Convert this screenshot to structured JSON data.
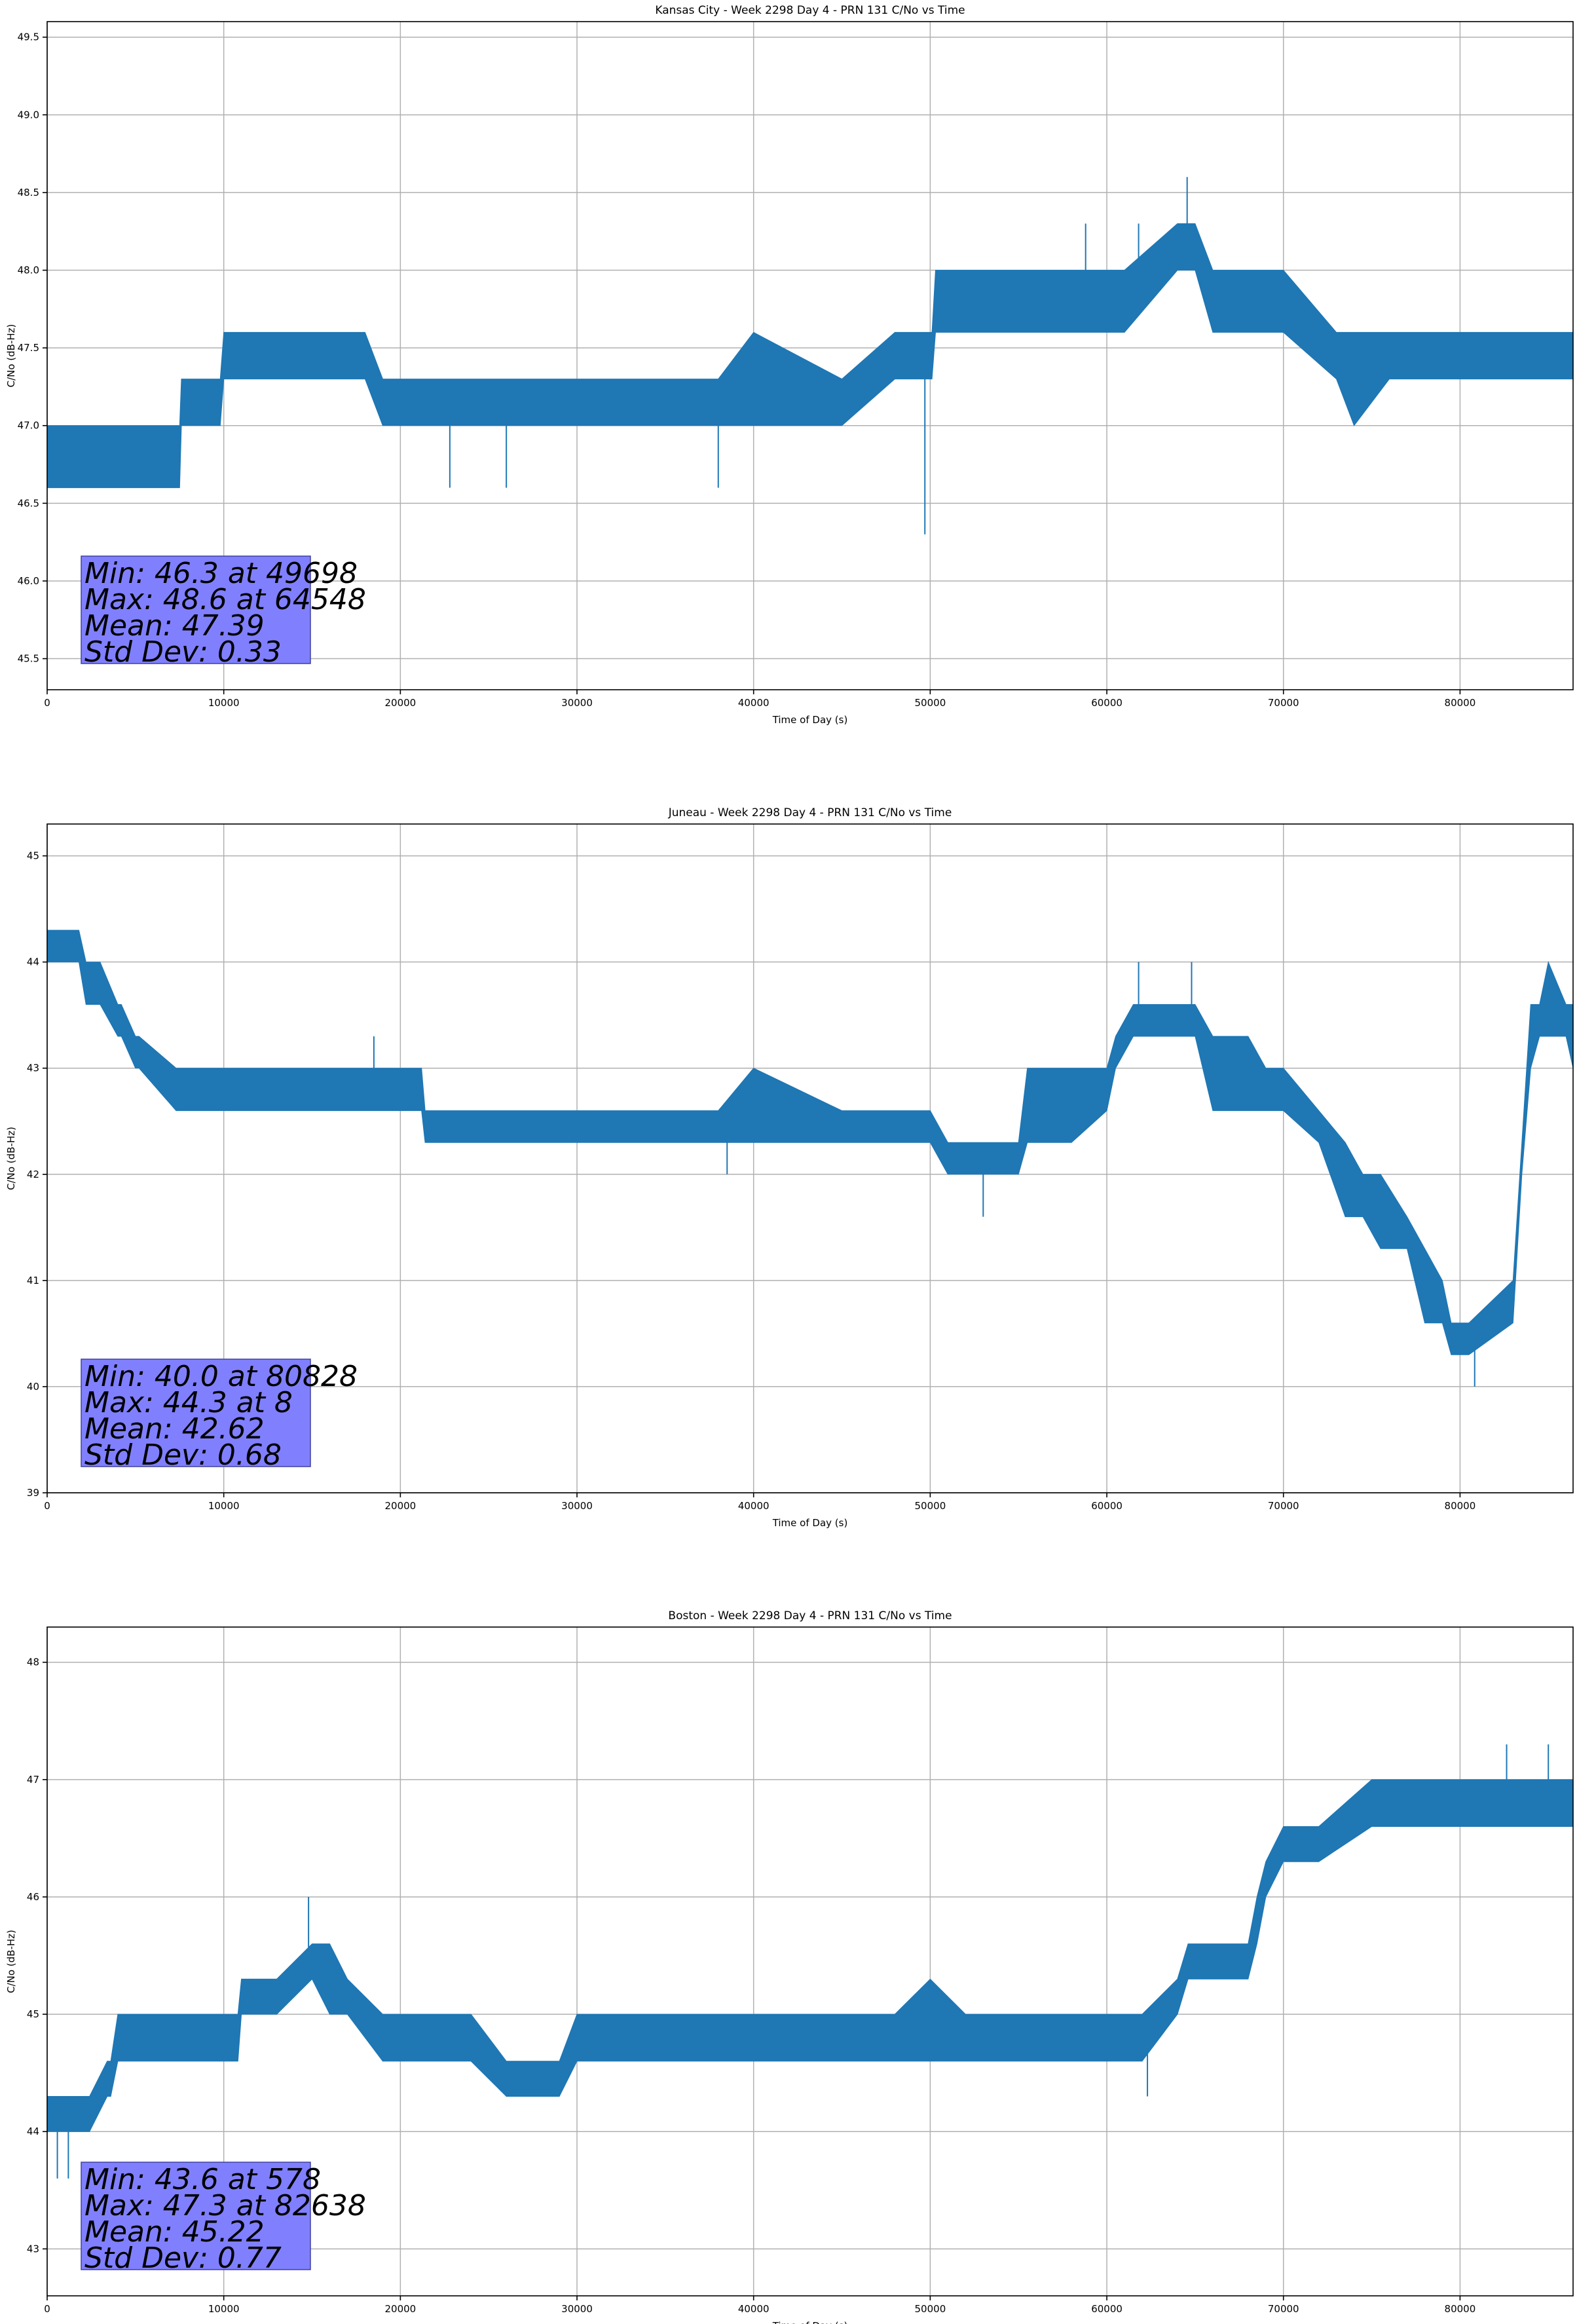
{
  "chart_data": [
    {
      "type": "line",
      "title": "Kansas City - Week 2298 Day 4 - PRN 131 C/No vs Time",
      "xlabel": "Time of Day (s)",
      "ylabel": "C/No (dB-Hz)",
      "xlim": [
        0,
        86400
      ],
      "ylim": [
        45.3,
        49.6
      ],
      "xticks": [
        0,
        10000,
        20000,
        30000,
        40000,
        50000,
        60000,
        70000,
        80000
      ],
      "yticks": [
        45.5,
        46.0,
        46.5,
        47.0,
        47.5,
        48.0,
        48.5,
        49.0,
        49.5
      ],
      "ytick_labels": [
        "45.5",
        "46.0",
        "46.5",
        "47.0",
        "47.5",
        "48.0",
        "48.5",
        "49.0",
        "49.5"
      ],
      "grid": true,
      "color": "#1f77b4",
      "band": {
        "x": [
          0,
          7500,
          7600,
          9800,
          10000,
          16000,
          18000,
          19000,
          21000,
          29000,
          30000,
          38000,
          40000,
          45000,
          48000,
          50100,
          50300,
          55000,
          60000,
          61000,
          64000,
          65000,
          66000,
          70000,
          73000,
          74000,
          76000,
          80000,
          86400
        ],
        "low": [
          46.6,
          46.6,
          47.0,
          47.0,
          47.3,
          47.3,
          47.3,
          47.0,
          47.0,
          47.0,
          47.0,
          47.0,
          47.0,
          47.0,
          47.3,
          47.3,
          47.6,
          47.6,
          47.6,
          47.6,
          48.0,
          48.0,
          47.6,
          47.6,
          47.3,
          47.0,
          47.3,
          47.3,
          47.3
        ],
        "high": [
          47.0,
          47.0,
          47.3,
          47.3,
          47.6,
          47.6,
          47.6,
          47.3,
          47.3,
          47.3,
          47.3,
          47.3,
          47.6,
          47.3,
          47.6,
          47.6,
          48.0,
          48.0,
          48.0,
          48.0,
          48.3,
          48.3,
          48.0,
          48.0,
          47.6,
          47.6,
          47.6,
          47.6,
          47.6
        ]
      },
      "spikes": [
        {
          "x": 49698,
          "y": 46.3
        },
        {
          "x": 64548,
          "y": 48.6
        },
        {
          "x": 22800,
          "y": 46.6
        },
        {
          "x": 26000,
          "y": 46.6
        },
        {
          "x": 38000,
          "y": 46.6
        },
        {
          "x": 58800,
          "y": 48.3
        },
        {
          "x": 61800,
          "y": 48.3
        }
      ],
      "stats": [
        "Min: 46.3 at 49698",
        "Max: 48.6 at 64548",
        "Mean: 47.39",
        "Std Dev: 0.33"
      ]
    },
    {
      "type": "line",
      "title": "Juneau - Week 2298 Day 4 - PRN 131 C/No vs Time",
      "xlabel": "Time of Day (s)",
      "ylabel": "C/No (dB-Hz)",
      "xlim": [
        0,
        86400
      ],
      "ylim": [
        39,
        45.3
      ],
      "xticks": [
        0,
        10000,
        20000,
        30000,
        40000,
        50000,
        60000,
        70000,
        80000
      ],
      "yticks": [
        39,
        40,
        41,
        42,
        43,
        44,
        45
      ],
      "ytick_labels": [
        "39",
        "40",
        "41",
        "42",
        "43",
        "44",
        "45"
      ],
      "grid": true,
      "color": "#1f77b4",
      "band": {
        "x": [
          0,
          1800,
          2200,
          2800,
          3000,
          4000,
          4200,
          5000,
          5200,
          7300,
          7500,
          9000,
          12000,
          19000,
          21200,
          21400,
          30000,
          38000,
          40000,
          45000,
          50000,
          51000,
          52000,
          55000,
          55500,
          58000,
          60000,
          60500,
          61500,
          62000,
          65000,
          66000,
          68000,
          69000,
          70000,
          72000,
          73500,
          74500,
          75500,
          77000,
          78000,
          79000,
          79500,
          80500,
          83000,
          83500,
          84000,
          84500,
          85000,
          86000,
          86400
        ],
        "low": [
          44.0,
          44.0,
          43.6,
          43.6,
          43.6,
          43.3,
          43.3,
          43.0,
          43.0,
          42.6,
          42.6,
          42.6,
          42.6,
          42.6,
          42.6,
          42.3,
          42.3,
          42.3,
          42.3,
          42.3,
          42.3,
          42.0,
          42.0,
          42.0,
          42.3,
          42.3,
          42.6,
          43.0,
          43.3,
          43.3,
          43.3,
          42.6,
          42.6,
          42.6,
          42.6,
          42.3,
          41.6,
          41.6,
          41.3,
          41.3,
          40.6,
          40.6,
          40.3,
          40.3,
          40.6,
          42.0,
          43.0,
          43.3,
          43.3,
          43.3,
          43.0
        ],
        "high": [
          44.3,
          44.3,
          44.0,
          44.0,
          44.0,
          43.6,
          43.6,
          43.3,
          43.3,
          43.0,
          43.0,
          43.0,
          43.0,
          43.0,
          43.0,
          42.6,
          42.6,
          42.6,
          43.0,
          42.6,
          42.6,
          42.3,
          42.3,
          42.3,
          43.0,
          43.0,
          43.0,
          43.3,
          43.6,
          43.6,
          43.6,
          43.3,
          43.3,
          43.0,
          43.0,
          42.6,
          42.3,
          42.0,
          42.0,
          41.6,
          41.3,
          41.0,
          40.6,
          40.6,
          41.0,
          42.3,
          43.6,
          43.6,
          44.0,
          43.6,
          43.6
        ]
      },
      "spikes": [
        {
          "x": 8,
          "y": 44.3
        },
        {
          "x": 80828,
          "y": 40.0
        },
        {
          "x": 53000,
          "y": 41.6
        },
        {
          "x": 61800,
          "y": 44.0
        },
        {
          "x": 64800,
          "y": 44.0
        },
        {
          "x": 18500,
          "y": 43.3
        },
        {
          "x": 38500,
          "y": 42.0
        }
      ],
      "stats": [
        "Min: 40.0 at 80828",
        "Max: 44.3 at 8",
        "Mean: 42.62",
        "Std Dev: 0.68"
      ]
    },
    {
      "type": "line",
      "title": "Boston - Week 2298 Day 4 - PRN 131 C/No vs Time",
      "xlabel": "Time of Day (s)",
      "ylabel": "C/No (dB-Hz)",
      "xlim": [
        0,
        86400
      ],
      "ylim": [
        42.6,
        48.3
      ],
      "xticks": [
        0,
        10000,
        20000,
        30000,
        40000,
        50000,
        60000,
        70000,
        80000
      ],
      "yticks": [
        43,
        44,
        45,
        46,
        47,
        48
      ],
      "ytick_labels": [
        "43",
        "44",
        "45",
        "46",
        "47",
        "48"
      ],
      "grid": true,
      "color": "#1f77b4",
      "band": {
        "x": [
          0,
          2200,
          2400,
          3400,
          3600,
          4000,
          10800,
          11000,
          13000,
          15000,
          16000,
          17000,
          19000,
          24000,
          26000,
          29000,
          30000,
          35000,
          48000,
          50000,
          52000,
          56000,
          60000,
          62000,
          64000,
          64600,
          68000,
          68500,
          69000,
          70000,
          70500,
          72000,
          75000,
          76000,
          80000,
          86400
        ],
        "low": [
          44.0,
          44.0,
          44.0,
          44.3,
          44.3,
          44.6,
          44.6,
          45.0,
          45.0,
          45.3,
          45.0,
          45.0,
          44.6,
          44.6,
          44.3,
          44.3,
          44.6,
          44.6,
          44.6,
          44.6,
          44.6,
          44.6,
          44.6,
          44.6,
          45.0,
          45.3,
          45.3,
          45.6,
          46.0,
          46.3,
          46.3,
          46.3,
          46.6,
          46.6,
          46.6,
          46.6
        ],
        "high": [
          44.3,
          44.3,
          44.3,
          44.6,
          44.6,
          45.0,
          45.0,
          45.3,
          45.3,
          45.6,
          45.6,
          45.3,
          45.0,
          45.0,
          44.6,
          44.6,
          45.0,
          45.0,
          45.0,
          45.3,
          45.0,
          45.0,
          45.0,
          45.0,
          45.3,
          45.6,
          45.6,
          46.0,
          46.3,
          46.6,
          46.6,
          46.6,
          47.0,
          47.0,
          47.0,
          47.0
        ]
      },
      "spikes": [
        {
          "x": 578,
          "y": 43.6
        },
        {
          "x": 82638,
          "y": 47.3
        },
        {
          "x": 14800,
          "y": 46.0
        },
        {
          "x": 62300,
          "y": 44.3
        },
        {
          "x": 85000,
          "y": 47.3
        },
        {
          "x": 1200,
          "y": 43.6
        }
      ],
      "stats": [
        "Min: 43.6 at 578",
        "Max: 47.3 at 82638",
        "Mean: 45.22",
        "Std Dev: 0.77"
      ]
    }
  ]
}
